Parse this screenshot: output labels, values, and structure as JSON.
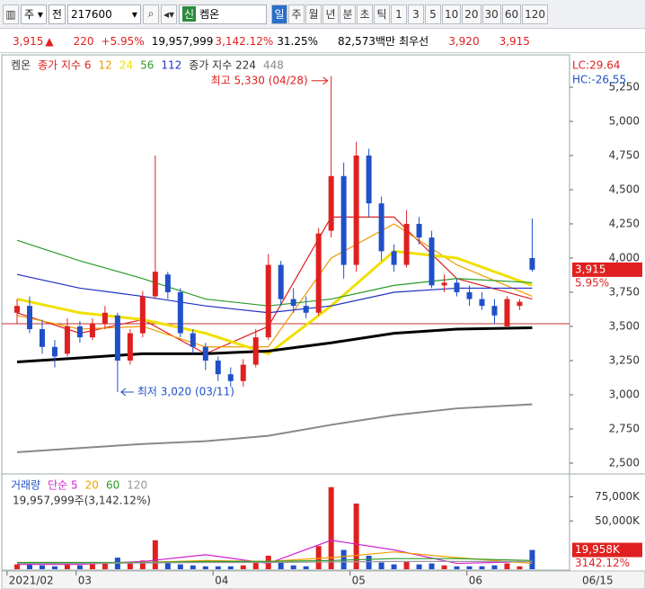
{
  "toolbar": {
    "market": "주",
    "prev": "전",
    "code": "217600",
    "badge": "신",
    "name": "켐온",
    "periods": [
      "일",
      "주",
      "월",
      "년",
      "분",
      "초",
      "틱",
      "1",
      "3",
      "5",
      "10",
      "20",
      "30",
      "60",
      "120"
    ]
  },
  "info": {
    "price": "3,915",
    "arrow": "▲",
    "change": "220",
    "rate": "+5.95%",
    "volume": "19,957,999",
    "vol_ratio": "3,142.12%",
    "turnover": "31.25%",
    "amount": "82,573백만",
    "best_label": "최우선",
    "ask": "3,920",
    "bid": "3,915"
  },
  "chart_data": [
    {
      "type": "candlestick",
      "name": "켐온",
      "open": [
        3600,
        3650,
        3480,
        3350,
        3300,
        3500,
        3420,
        3520,
        3580,
        3250,
        3450,
        3720,
        3880,
        3750,
        3450,
        3350,
        3250,
        3150,
        3100,
        3220,
        3420,
        3950,
        3700,
        3650,
        3600,
        4200,
        4600,
        3950,
        4750,
        4400,
        4050,
        3950,
        4250,
        4150,
        3800,
        3820,
        3750,
        3700,
        3650,
        3500,
        3650,
        4000
      ],
      "high": [
        3700,
        3720,
        3550,
        3400,
        3560,
        3540,
        3560,
        3650,
        3600,
        3480,
        3760,
        4750,
        3900,
        3780,
        3480,
        3380,
        3280,
        3200,
        3260,
        3480,
        4030,
        3980,
        3780,
        3720,
        4220,
        5330,
        4700,
        4850,
        4800,
        4450,
        4100,
        4350,
        4300,
        4200,
        3880,
        3850,
        3800,
        3750,
        3700,
        3720,
        3700,
        4290
      ],
      "low": [
        3520,
        3450,
        3300,
        3200,
        3280,
        3380,
        3400,
        3480,
        3020,
        3220,
        3420,
        3700,
        3700,
        3420,
        3300,
        3180,
        3100,
        3060,
        3060,
        3200,
        3400,
        3650,
        3600,
        3560,
        3580,
        4150,
        3850,
        3900,
        4300,
        3980,
        3900,
        3930,
        4100,
        3780,
        3750,
        3720,
        3650,
        3620,
        3520,
        3490,
        3620,
        3900
      ],
      "close": [
        3650,
        3480,
        3350,
        3280,
        3500,
        3420,
        3520,
        3600,
        3250,
        3450,
        3720,
        3900,
        3750,
        3450,
        3350,
        3250,
        3150,
        3100,
        3220,
        3420,
        3950,
        3700,
        3650,
        3600,
        4180,
        4600,
        3950,
        4750,
        4400,
        4050,
        3950,
        4250,
        4150,
        3800,
        3820,
        3750,
        3700,
        3650,
        3580,
        3700,
        3680,
        3915
      ],
      "ma_x": [
        0,
        5,
        10,
        15,
        20,
        25,
        30,
        35,
        41
      ],
      "series": [
        {
          "name": "종가 지수 6",
          "color": "#e02020",
          "values": [
            3600,
            3450,
            3550,
            3300,
            3500,
            4300,
            4300,
            3850,
            3700
          ]
        },
        {
          "name": "12",
          "color": "#f09a00",
          "values": [
            3580,
            3480,
            3500,
            3350,
            3350,
            4000,
            4250,
            3950,
            3720
          ]
        },
        {
          "name": "24",
          "color": "#f0e000",
          "values": [
            3700,
            3600,
            3550,
            3450,
            3300,
            3650,
            4050,
            4000,
            3800
          ]
        },
        {
          "name": "56",
          "color": "#2a9a2a",
          "values": [
            4130,
            3980,
            3850,
            3700,
            3650,
            3700,
            3800,
            3850,
            3820
          ]
        },
        {
          "name": "112",
          "color": "#2030c0",
          "values": [
            3880,
            3780,
            3720,
            3650,
            3600,
            3650,
            3750,
            3780,
            3780
          ]
        },
        {
          "name": "종가 지수 224",
          "color": "#000000",
          "values": [
            3240,
            3270,
            3300,
            3300,
            3320,
            3380,
            3450,
            3480,
            3490
          ]
        },
        {
          "name": "448",
          "color": "#888888",
          "values": [
            2580,
            2610,
            2640,
            2660,
            2700,
            2780,
            2850,
            2900,
            2930
          ]
        }
      ],
      "ref_line": 3520,
      "ylim": [
        2421,
        5480
      ],
      "yticks": [
        {
          "value": 2500,
          "label": "2,500"
        },
        {
          "value": 2750,
          "label": "2,750"
        },
        {
          "value": 3000,
          "label": "3,000"
        },
        {
          "value": 3250,
          "label": "3,250"
        },
        {
          "value": 3500,
          "label": "3,500"
        },
        {
          "value": 3750,
          "label": "3,750"
        },
        {
          "value": 4000,
          "label": "4,000"
        },
        {
          "value": 4250,
          "label": "4,250"
        },
        {
          "value": 4500,
          "label": "4,500"
        },
        {
          "value": 4750,
          "label": "4,750"
        },
        {
          "value": 5000,
          "label": "5,000"
        },
        {
          "value": 5250,
          "label": "5,250"
        }
      ],
      "xlim": [
        -1,
        43.9
      ],
      "high_note": "최고 5,330 (04/28)",
      "low_note": "최저 3,020 (03/11)",
      "lc": "LC:29.64",
      "hc": "HC:-26.55",
      "price_tag": "3,915",
      "change_tag": "5.95%"
    },
    {
      "type": "bar",
      "title": "거래량",
      "subtitle": "19,957,999주(3,142.12%)",
      "values": [
        5000,
        6000,
        4000,
        3000,
        7000,
        4000,
        5000,
        6000,
        12000,
        6000,
        9000,
        30000,
        8000,
        5000,
        4000,
        3000,
        3000,
        3000,
        4000,
        8000,
        14000,
        7000,
        4000,
        3000,
        24000,
        85000,
        20000,
        68000,
        14000,
        7000,
        5000,
        8000,
        5000,
        6000,
        4000,
        3000,
        3000,
        3000,
        4000,
        6000,
        3000,
        19958
      ],
      "up_color": "#e02020",
      "down_color": "#2050c8",
      "ma_x": [
        0,
        5,
        10,
        15,
        20,
        25,
        30,
        35,
        41
      ],
      "series": [
        {
          "name": "단순 5",
          "color": "#d020d0",
          "values": [
            5000,
            5000,
            8000,
            15000,
            6000,
            30000,
            20000,
            6000,
            8000
          ]
        },
        {
          "name": "20",
          "color": "#f0a000",
          "values": [
            6000,
            6000,
            7000,
            9000,
            8000,
            12000,
            18000,
            12000,
            6000
          ]
        },
        {
          "name": "60",
          "color": "#2a9a2a",
          "values": [
            7000,
            7000,
            7000,
            8000,
            8000,
            9000,
            11000,
            11000,
            9000
          ]
        },
        {
          "name": "120",
          "color": "#999999",
          "values": [
            6000,
            6000,
            6500,
            7000,
            7000,
            7500,
            8000,
            8000,
            8000
          ]
        }
      ],
      "ylim": [
        0,
        95000
      ],
      "yticks": [
        {
          "value": 50000,
          "label": "50,000K"
        },
        {
          "value": 75000,
          "label": "75,000K"
        }
      ],
      "xlim": [
        -1,
        43.9
      ],
      "xticks": [
        {
          "value": -0.8,
          "label": "2021/02"
        },
        {
          "value": 4.7,
          "label": "03"
        },
        {
          "value": 15.6,
          "label": "04"
        },
        {
          "value": 26.5,
          "label": "05"
        },
        {
          "value": 35.8,
          "label": "06"
        }
      ],
      "last_date": "06/15",
      "volume_tag": "19,958K",
      "ratio_tag": "3142.12%"
    }
  ]
}
